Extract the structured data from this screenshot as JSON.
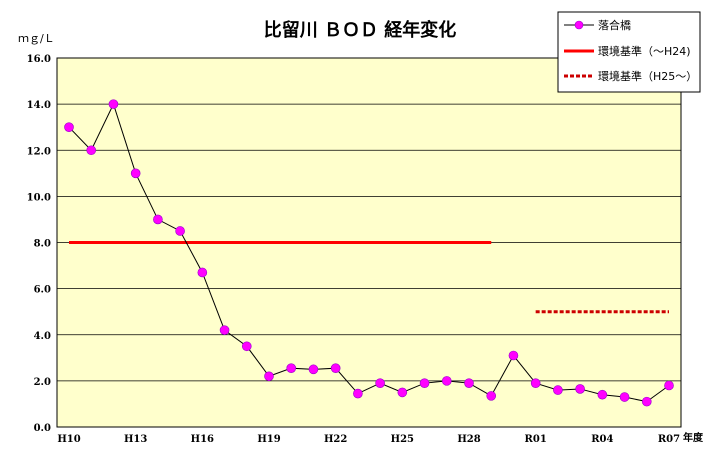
{
  "chart_data": {
    "type": "line",
    "title": "比留川 ＢＯＤ 経年変化",
    "ylabel": "ｍｇ/Ｌ",
    "xlabel": "年度",
    "ylim": [
      0,
      16
    ],
    "yticks": [
      "0.0",
      "2.0",
      "4.0",
      "6.0",
      "8.0",
      "10.0",
      "12.0",
      "14.0",
      "16.0"
    ],
    "x": [
      "H10",
      "H11",
      "H12",
      "H13",
      "H14",
      "H15",
      "H16",
      "H17",
      "H18",
      "H19",
      "H20",
      "H21",
      "H22",
      "H23",
      "H24",
      "H25",
      "H26",
      "H27",
      "H28",
      "H29",
      "H30",
      "R01",
      "R02",
      "R03",
      "R04",
      "R05",
      "R06",
      "R07"
    ],
    "xtick_labels": [
      "H10",
      "H13",
      "H16",
      "H19",
      "H22",
      "H25",
      "H28",
      "R01",
      "R04",
      "R07"
    ],
    "grid": true,
    "legend_position": "top-right",
    "series": [
      {
        "name": "落合橋",
        "color": "#ff00ff",
        "values": [
          13.0,
          12.0,
          14.0,
          11.0,
          9.0,
          8.5,
          6.7,
          4.2,
          3.5,
          2.2,
          2.55,
          2.5,
          2.55,
          1.45,
          1.9,
          1.5,
          1.9,
          2.0,
          1.9,
          1.35,
          3.1,
          1.9,
          1.6,
          1.65,
          1.4,
          1.3,
          1.1,
          1.8
        ]
      }
    ],
    "reference_lines": [
      {
        "name": "環境基準（～H24)",
        "value": 8.0,
        "from": "H10",
        "to": "H29",
        "color": "#ff0000",
        "style": "solid"
      },
      {
        "name": "環境基準（H25～）",
        "value": 5.0,
        "from": "R01",
        "to": "R07",
        "color": "#cc0000",
        "style": "dashed"
      }
    ]
  }
}
